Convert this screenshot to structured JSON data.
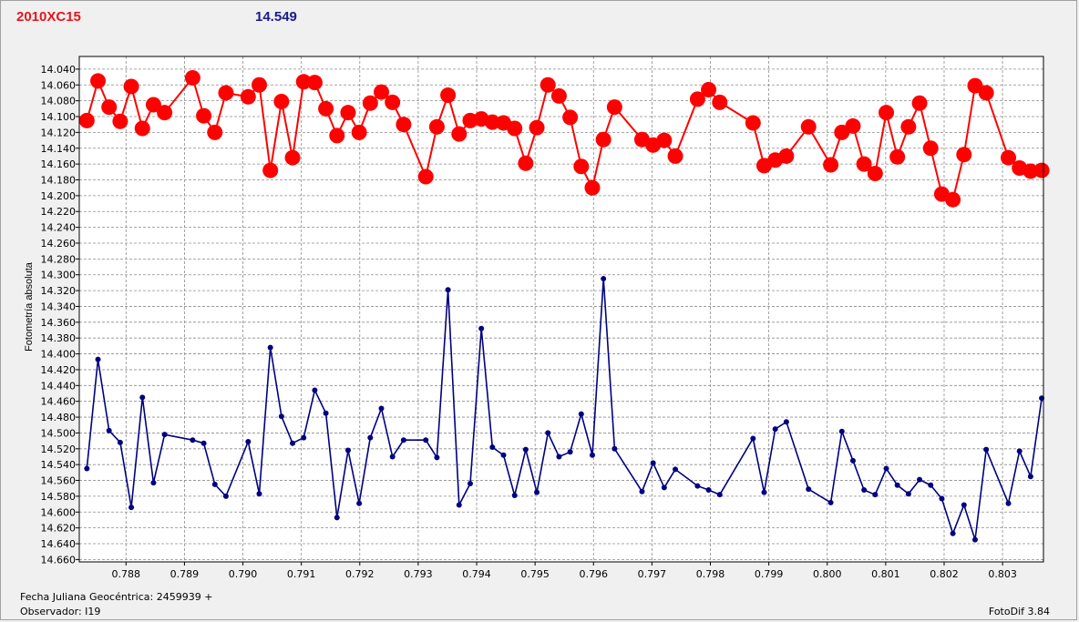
{
  "header": {
    "object_name": "2010XC15",
    "comparison_mag": "14.549"
  },
  "footer": {
    "date_label": "Fecha Juliana Geocéntrica: 2459939 +",
    "observer_label": "Observador: I19",
    "software_label": "FotoDif 3.84"
  },
  "colors": {
    "series_red": "#ff0000",
    "series_blue": "#000080",
    "background": "#f0f0f0",
    "plot_bg": "#ffffff"
  },
  "chart_data": {
    "type": "line",
    "title": "",
    "xlabel": "Fecha Juliana Geocéntrica: 2459939 +",
    "ylabel": "Fotometría absoluta",
    "xlim": [
      0.7872,
      0.8037
    ],
    "ylim": [
      14.024,
      14.663
    ],
    "y_inverted": true,
    "grid": true,
    "x_ticks": [
      0.788,
      0.789,
      0.79,
      0.791,
      0.792,
      0.793,
      0.794,
      0.795,
      0.796,
      0.797,
      0.798,
      0.799,
      0.8,
      0.801,
      0.802,
      0.803
    ],
    "x_tick_labels": [
      "0.788",
      "0.789",
      "0.790",
      "0.791",
      "0.792",
      "0.793",
      "0.794",
      "0.795",
      "0.796",
      "0.797",
      "0.798",
      "0.799",
      "0.800",
      "0.801",
      "0.802",
      "0.803"
    ],
    "y_ticks": [
      14.04,
      14.06,
      14.08,
      14.1,
      14.12,
      14.14,
      14.16,
      14.18,
      14.2,
      14.22,
      14.24,
      14.26,
      14.28,
      14.3,
      14.32,
      14.34,
      14.36,
      14.38,
      14.4,
      14.42,
      14.44,
      14.46,
      14.48,
      14.5,
      14.52,
      14.54,
      14.56,
      14.58,
      14.6,
      14.62,
      14.64,
      14.66
    ],
    "y_tick_labels": [
      "14.040",
      "14.060",
      "14.080",
      "14.100",
      "14.120",
      "14.140",
      "14.160",
      "14.180",
      "14.200",
      "14.220",
      "14.240",
      "14.260",
      "14.280",
      "14.300",
      "14.320",
      "14.340",
      "14.360",
      "14.380",
      "14.400",
      "14.420",
      "14.440",
      "14.460",
      "14.480",
      "14.500",
      "14.520",
      "14.540",
      "14.560",
      "14.580",
      "14.600",
      "14.620",
      "14.640",
      "14.660"
    ],
    "series": [
      {
        "color": "#ff0000",
        "marker": "large-circle",
        "x": [
          0.78733,
          0.78752,
          0.78771,
          0.7879,
          0.78809,
          0.78828,
          0.78847,
          0.78866,
          0.78914,
          0.78933,
          0.78952,
          0.78971,
          0.79009,
          0.79028,
          0.79047,
          0.79066,
          0.79085,
          0.79104,
          0.79123,
          0.79142,
          0.79161,
          0.7918,
          0.79199,
          0.79218,
          0.79237,
          0.79256,
          0.79275,
          0.79313,
          0.79332,
          0.79351,
          0.7937,
          0.79389,
          0.79408,
          0.79427,
          0.79446,
          0.79465,
          0.79484,
          0.79503,
          0.79522,
          0.79541,
          0.7956,
          0.79579,
          0.79598,
          0.79617,
          0.79636,
          0.79683,
          0.79702,
          0.79721,
          0.7974,
          0.79778,
          0.79797,
          0.79816,
          0.79873,
          0.79892,
          0.79911,
          0.7993,
          0.79968,
          0.80006,
          0.80025,
          0.80044,
          0.80063,
          0.80082,
          0.80101,
          0.8012,
          0.80139,
          0.80158,
          0.80177,
          0.80196,
          0.80215,
          0.80234,
          0.80253,
          0.80272,
          0.8031,
          0.80329,
          0.80348,
          0.80367
        ],
        "y": [
          14.105,
          14.055,
          14.088,
          14.106,
          14.062,
          14.115,
          14.085,
          14.095,
          14.051,
          14.099,
          14.12,
          14.07,
          14.075,
          14.06,
          14.168,
          14.081,
          14.152,
          14.056,
          14.057,
          14.09,
          14.124,
          14.095,
          14.12,
          14.083,
          14.069,
          14.082,
          14.11,
          14.176,
          14.113,
          14.073,
          14.122,
          14.105,
          14.103,
          14.107,
          14.108,
          14.115,
          14.159,
          14.114,
          14.06,
          14.074,
          14.101,
          14.163,
          14.19,
          14.129,
          14.088,
          14.129,
          14.136,
          14.13,
          14.15,
          14.078,
          14.066,
          14.082,
          14.108,
          14.162,
          14.155,
          14.15,
          14.113,
          14.161,
          14.12,
          14.112,
          14.16,
          14.172,
          14.095,
          14.151,
          14.113,
          14.083,
          14.14,
          14.198,
          14.205,
          14.148,
          14.061,
          14.07,
          14.152,
          14.165,
          14.169,
          14.168
        ]
      },
      {
        "color": "#000080",
        "marker": "small-diamond",
        "x": [
          0.78733,
          0.78752,
          0.78771,
          0.7879,
          0.78809,
          0.78828,
          0.78847,
          0.78866,
          0.78914,
          0.78933,
          0.78952,
          0.78971,
          0.79009,
          0.79028,
          0.79047,
          0.79066,
          0.79085,
          0.79104,
          0.79123,
          0.79142,
          0.79161,
          0.7918,
          0.79199,
          0.79218,
          0.79237,
          0.79256,
          0.79275,
          0.79313,
          0.79332,
          0.79351,
          0.7937,
          0.79389,
          0.79408,
          0.79427,
          0.79446,
          0.79465,
          0.79484,
          0.79503,
          0.79522,
          0.79541,
          0.7956,
          0.79579,
          0.79598,
          0.79617,
          0.79636,
          0.79683,
          0.79702,
          0.79721,
          0.7974,
          0.79778,
          0.79797,
          0.79816,
          0.79873,
          0.79892,
          0.79911,
          0.7993,
          0.79968,
          0.80006,
          0.80025,
          0.80044,
          0.80063,
          0.80082,
          0.80101,
          0.8012,
          0.80139,
          0.80158,
          0.80177,
          0.80196,
          0.80215,
          0.80234,
          0.80253,
          0.80272,
          0.8031,
          0.80329,
          0.80348,
          0.80367
        ],
        "y": [
          14.545,
          14.407,
          14.497,
          14.512,
          14.594,
          14.455,
          14.563,
          14.502,
          14.509,
          14.513,
          14.565,
          14.58,
          14.511,
          14.577,
          14.392,
          14.479,
          14.513,
          14.506,
          14.446,
          14.475,
          14.607,
          14.522,
          14.589,
          14.506,
          14.469,
          14.53,
          14.509,
          14.509,
          14.531,
          14.319,
          14.591,
          14.564,
          14.368,
          14.518,
          14.528,
          14.579,
          14.521,
          14.575,
          14.5,
          14.53,
          14.524,
          14.476,
          14.528,
          14.305,
          14.52,
          14.574,
          14.538,
          14.569,
          14.546,
          14.567,
          14.572,
          14.578,
          14.507,
          14.575,
          14.495,
          14.486,
          14.571,
          14.588,
          14.498,
          14.535,
          14.572,
          14.578,
          14.545,
          14.566,
          14.577,
          14.559,
          14.566,
          14.583,
          14.627,
          14.591,
          14.635,
          14.521,
          14.589,
          14.523,
          14.555,
          14.456
        ]
      }
    ]
  }
}
